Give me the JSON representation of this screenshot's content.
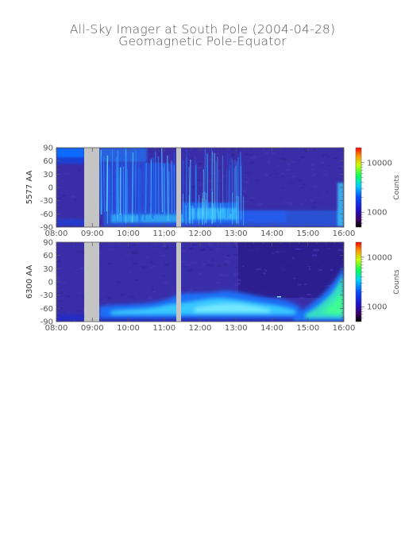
{
  "figure": {
    "title_line1": "All-Sky Imager at South Pole (2004-04-28)",
    "title_line2": "Geomagnetic Pole-Equator"
  },
  "chart_data": [
    {
      "type": "heatmap",
      "ylabel": "5577 AA",
      "x_ticks": [
        "08:00",
        "09:00",
        "10:00",
        "11:00",
        "12:00",
        "13:00",
        "14:00",
        "15:00",
        "16:00"
      ],
      "xlim": [
        "08:00",
        "16:00"
      ],
      "y_ticks": [
        90,
        60,
        30,
        0,
        -30,
        -60,
        -90
      ],
      "ylim": [
        -90,
        90
      ],
      "colorbar": {
        "label": "Counts",
        "scale": "log",
        "ticks": [
          "10000",
          "1000"
        ]
      },
      "data_gaps": [
        [
          "08:46",
          "09:14"
        ],
        [
          "11:18",
          "11:27"
        ]
      ]
    },
    {
      "type": "heatmap",
      "ylabel": "6300 AA",
      "x_ticks": [
        "08:00",
        "09:00",
        "10:00",
        "11:00",
        "12:00",
        "13:00",
        "14:00",
        "15:00",
        "16:00"
      ],
      "xlim": [
        "08:00",
        "16:00"
      ],
      "y_ticks": [
        90,
        60,
        30,
        0,
        -30,
        -60,
        -90
      ],
      "ylim": [
        -90,
        90
      ],
      "colorbar": {
        "label": "Counts",
        "scale": "log",
        "ticks": [
          "10000",
          "1000"
        ]
      },
      "data_gaps": [
        [
          "08:46",
          "09:14"
        ],
        [
          "11:18",
          "11:27"
        ]
      ]
    }
  ]
}
